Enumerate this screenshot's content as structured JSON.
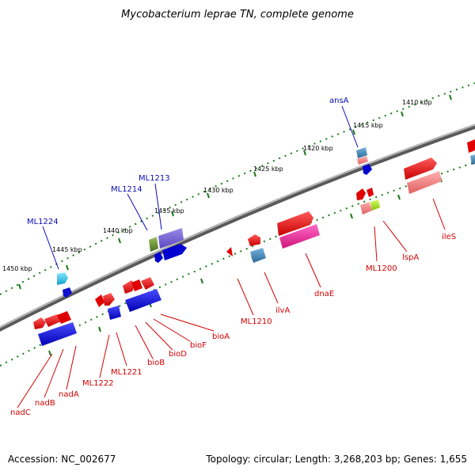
{
  "title": "Mycobacterium leprae TN, complete genome",
  "footer": {
    "accession": "Accession: NC_002677",
    "topology": "Topology: circular; Length: 3,268,203 bp; Genes: 1,655"
  },
  "colors": {
    "background": "#ffffff",
    "backbone": "#888888",
    "tick": "#1a7a1a",
    "forward_label": "#0a0ab4",
    "reverse_label": "#d40000"
  },
  "kbp_labels": [
    "1410 kbp",
    "1415 kbp",
    "1420 kbp",
    "1425 kbp",
    "1430 kbp",
    "1435 kbp",
    "1440 kbp",
    "1445 kbp",
    "1450 kbp"
  ],
  "forward_gene_labels": [
    "ansA",
    "ML1213",
    "ML1214",
    "ML1224"
  ],
  "reverse_gene_labels": [
    "ileS",
    "lspA",
    "ML1200",
    "dnaE",
    "ilvA",
    "ML1210",
    "bioA",
    "bioF",
    "bioD",
    "bioB",
    "ML1221",
    "ML1222",
    "nadA",
    "nadB",
    "nadC"
  ]
}
